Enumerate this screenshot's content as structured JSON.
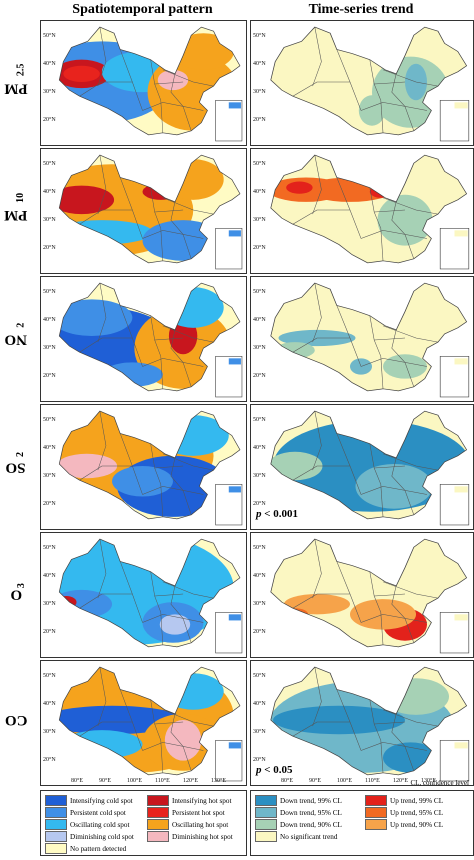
{
  "columns": {
    "left_title": "Spatiotemporal pattern",
    "right_title": "Time-series trend"
  },
  "rows": [
    {
      "id": "pm25",
      "label_main": "PM",
      "label_sub": "2.5"
    },
    {
      "id": "pm10",
      "label_main": "PM",
      "label_sub": "10"
    },
    {
      "id": "no2",
      "label_main": "NO",
      "label_sub": "2"
    },
    {
      "id": "so2",
      "label_main": "SO",
      "label_sub": "2"
    },
    {
      "id": "o3",
      "label_main": "O",
      "label_sub": "3"
    },
    {
      "id": "co",
      "label_main": "CO",
      "label_sub": ""
    }
  ],
  "lat_ticks": [
    "50°N",
    "40°N",
    "30°N",
    "20°N"
  ],
  "lon_ticks": [
    "80°E",
    "90°E",
    "100°E",
    "110°E",
    "120°E",
    "130°E"
  ],
  "significance": {
    "upper_prefix": "p",
    "upper_value": " < 0.001",
    "lower_prefix": "p",
    "lower_value": " < 0.05"
  },
  "cl_note": "CL, confidence level",
  "legend_left": [
    {
      "label": "Intensifying cold spot",
      "color": "#1f5fd6"
    },
    {
      "label": "Intensifying hot spot",
      "color": "#c8161e"
    },
    {
      "label": "Persistent cold spot",
      "color": "#3f8fe6"
    },
    {
      "label": "Persistent hot spot",
      "color": "#e8231d"
    },
    {
      "label": "Oscillating cold spot",
      "color": "#34b9ef"
    },
    {
      "label": "Oscillating hot spot",
      "color": "#f5a31d"
    },
    {
      "label": "Diminishing cold spot",
      "color": "#b6c8f0"
    },
    {
      "label": "Diminishing hot spot",
      "color": "#f4b8bf"
    },
    {
      "label": "No pattern detected",
      "color": "#fffbc4"
    }
  ],
  "legend_right": [
    {
      "label": "Down trend, 99% CL",
      "color": "#2b8fc2"
    },
    {
      "label": "Up trend, 99% CL",
      "color": "#e3221b"
    },
    {
      "label": "Down trend, 95% CL",
      "color": "#6fb7c9"
    },
    {
      "label": "Up trend, 95% CL",
      "color": "#f26a22"
    },
    {
      "label": "Down trend, 90% CL",
      "color": "#a6d1b5"
    },
    {
      "label": "Up trend, 90% CL",
      "color": "#f6a34a"
    },
    {
      "label": "No significant trend",
      "color": "#fbf7c2"
    }
  ]
}
